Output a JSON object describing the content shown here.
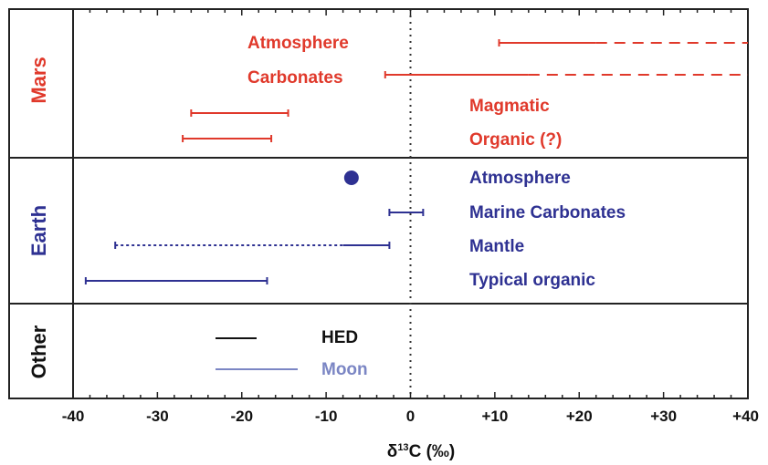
{
  "chart_data": {
    "type": "range",
    "xlabel": "δ13C (‰)",
    "xlim": [
      -40,
      40
    ],
    "xticks": [
      "-40",
      "-30",
      "-20",
      "-10",
      "0",
      "+10",
      "+20",
      "+30",
      "+40"
    ],
    "reference_line_x": 0,
    "colors": {
      "mars": "#e0392b",
      "earth": "#2e3192",
      "other_hed": "#111111",
      "other_moon": "#7b86c4",
      "frame": "#222222"
    },
    "groups": [
      {
        "name": "Mars",
        "color": "#e0392b",
        "items": [
          {
            "label": "Atmosphere",
            "solid": [
              10.5,
              22
            ],
            "dashed": [
              22,
              40
            ]
          },
          {
            "label": "Carbonates",
            "solid": [
              -3,
              14
            ],
            "dashed": [
              14,
              40
            ]
          },
          {
            "label": "Magmatic",
            "solid": [
              -26,
              -14.5
            ]
          },
          {
            "label": "Organic (?)",
            "solid": [
              -27,
              -16.5
            ]
          }
        ]
      },
      {
        "name": "Earth",
        "color": "#2e3192",
        "items": [
          {
            "label": "Atmosphere",
            "point": -7
          },
          {
            "label": "Marine Carbonates",
            "solid": [
              -2.5,
              1.5
            ]
          },
          {
            "label": "Mantle",
            "solid": [
              -8,
              -2.5
            ],
            "dotted": [
              -35,
              -8
            ]
          },
          {
            "label": "Typical organic",
            "solid": [
              -38.5,
              -17
            ]
          }
        ]
      },
      {
        "name": "Other",
        "color": "#111111",
        "legend": [
          {
            "label": "HED",
            "color": "#111111"
          },
          {
            "label": "Moon",
            "color": "#7b86c4"
          }
        ]
      }
    ]
  }
}
